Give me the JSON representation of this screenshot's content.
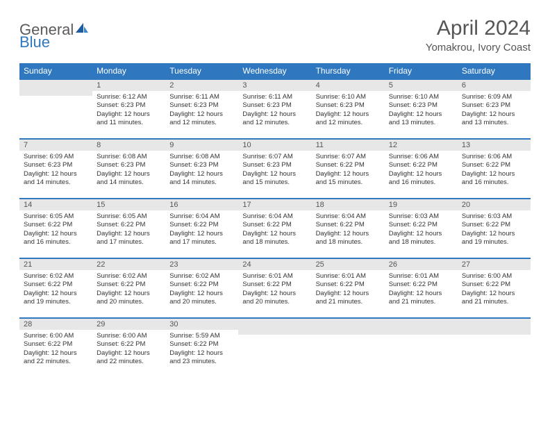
{
  "brand": {
    "part1": "General",
    "part2": "Blue"
  },
  "title": "April 2024",
  "location": "Yomakrou, Ivory Coast",
  "colors": {
    "accent": "#2f78bf",
    "header_bg": "#e7e7e7",
    "text": "#333333",
    "title_text": "#555555",
    "page_bg": "#ffffff"
  },
  "typography": {
    "title_fontsize": 30,
    "location_fontsize": 15,
    "weekday_fontsize": 12,
    "daynum_fontsize": 11,
    "body_fontsize": 9.5
  },
  "weekdays": [
    "Sunday",
    "Monday",
    "Tuesday",
    "Wednesday",
    "Thursday",
    "Friday",
    "Saturday"
  ],
  "weeks": [
    [
      {
        "n": "",
        "sunrise": "",
        "sunset": "",
        "daylight": ""
      },
      {
        "n": "1",
        "sunrise": "Sunrise: 6:12 AM",
        "sunset": "Sunset: 6:23 PM",
        "daylight": "Daylight: 12 hours and 11 minutes."
      },
      {
        "n": "2",
        "sunrise": "Sunrise: 6:11 AM",
        "sunset": "Sunset: 6:23 PM",
        "daylight": "Daylight: 12 hours and 12 minutes."
      },
      {
        "n": "3",
        "sunrise": "Sunrise: 6:11 AM",
        "sunset": "Sunset: 6:23 PM",
        "daylight": "Daylight: 12 hours and 12 minutes."
      },
      {
        "n": "4",
        "sunrise": "Sunrise: 6:10 AM",
        "sunset": "Sunset: 6:23 PM",
        "daylight": "Daylight: 12 hours and 12 minutes."
      },
      {
        "n": "5",
        "sunrise": "Sunrise: 6:10 AM",
        "sunset": "Sunset: 6:23 PM",
        "daylight": "Daylight: 12 hours and 13 minutes."
      },
      {
        "n": "6",
        "sunrise": "Sunrise: 6:09 AM",
        "sunset": "Sunset: 6:23 PM",
        "daylight": "Daylight: 12 hours and 13 minutes."
      }
    ],
    [
      {
        "n": "7",
        "sunrise": "Sunrise: 6:09 AM",
        "sunset": "Sunset: 6:23 PM",
        "daylight": "Daylight: 12 hours and 14 minutes."
      },
      {
        "n": "8",
        "sunrise": "Sunrise: 6:08 AM",
        "sunset": "Sunset: 6:23 PM",
        "daylight": "Daylight: 12 hours and 14 minutes."
      },
      {
        "n": "9",
        "sunrise": "Sunrise: 6:08 AM",
        "sunset": "Sunset: 6:23 PM",
        "daylight": "Daylight: 12 hours and 14 minutes."
      },
      {
        "n": "10",
        "sunrise": "Sunrise: 6:07 AM",
        "sunset": "Sunset: 6:23 PM",
        "daylight": "Daylight: 12 hours and 15 minutes."
      },
      {
        "n": "11",
        "sunrise": "Sunrise: 6:07 AM",
        "sunset": "Sunset: 6:22 PM",
        "daylight": "Daylight: 12 hours and 15 minutes."
      },
      {
        "n": "12",
        "sunrise": "Sunrise: 6:06 AM",
        "sunset": "Sunset: 6:22 PM",
        "daylight": "Daylight: 12 hours and 16 minutes."
      },
      {
        "n": "13",
        "sunrise": "Sunrise: 6:06 AM",
        "sunset": "Sunset: 6:22 PM",
        "daylight": "Daylight: 12 hours and 16 minutes."
      }
    ],
    [
      {
        "n": "14",
        "sunrise": "Sunrise: 6:05 AM",
        "sunset": "Sunset: 6:22 PM",
        "daylight": "Daylight: 12 hours and 16 minutes."
      },
      {
        "n": "15",
        "sunrise": "Sunrise: 6:05 AM",
        "sunset": "Sunset: 6:22 PM",
        "daylight": "Daylight: 12 hours and 17 minutes."
      },
      {
        "n": "16",
        "sunrise": "Sunrise: 6:04 AM",
        "sunset": "Sunset: 6:22 PM",
        "daylight": "Daylight: 12 hours and 17 minutes."
      },
      {
        "n": "17",
        "sunrise": "Sunrise: 6:04 AM",
        "sunset": "Sunset: 6:22 PM",
        "daylight": "Daylight: 12 hours and 18 minutes."
      },
      {
        "n": "18",
        "sunrise": "Sunrise: 6:04 AM",
        "sunset": "Sunset: 6:22 PM",
        "daylight": "Daylight: 12 hours and 18 minutes."
      },
      {
        "n": "19",
        "sunrise": "Sunrise: 6:03 AM",
        "sunset": "Sunset: 6:22 PM",
        "daylight": "Daylight: 12 hours and 18 minutes."
      },
      {
        "n": "20",
        "sunrise": "Sunrise: 6:03 AM",
        "sunset": "Sunset: 6:22 PM",
        "daylight": "Daylight: 12 hours and 19 minutes."
      }
    ],
    [
      {
        "n": "21",
        "sunrise": "Sunrise: 6:02 AM",
        "sunset": "Sunset: 6:22 PM",
        "daylight": "Daylight: 12 hours and 19 minutes."
      },
      {
        "n": "22",
        "sunrise": "Sunrise: 6:02 AM",
        "sunset": "Sunset: 6:22 PM",
        "daylight": "Daylight: 12 hours and 20 minutes."
      },
      {
        "n": "23",
        "sunrise": "Sunrise: 6:02 AM",
        "sunset": "Sunset: 6:22 PM",
        "daylight": "Daylight: 12 hours and 20 minutes."
      },
      {
        "n": "24",
        "sunrise": "Sunrise: 6:01 AM",
        "sunset": "Sunset: 6:22 PM",
        "daylight": "Daylight: 12 hours and 20 minutes."
      },
      {
        "n": "25",
        "sunrise": "Sunrise: 6:01 AM",
        "sunset": "Sunset: 6:22 PM",
        "daylight": "Daylight: 12 hours and 21 minutes."
      },
      {
        "n": "26",
        "sunrise": "Sunrise: 6:01 AM",
        "sunset": "Sunset: 6:22 PM",
        "daylight": "Daylight: 12 hours and 21 minutes."
      },
      {
        "n": "27",
        "sunrise": "Sunrise: 6:00 AM",
        "sunset": "Sunset: 6:22 PM",
        "daylight": "Daylight: 12 hours and 21 minutes."
      }
    ],
    [
      {
        "n": "28",
        "sunrise": "Sunrise: 6:00 AM",
        "sunset": "Sunset: 6:22 PM",
        "daylight": "Daylight: 12 hours and 22 minutes."
      },
      {
        "n": "29",
        "sunrise": "Sunrise: 6:00 AM",
        "sunset": "Sunset: 6:22 PM",
        "daylight": "Daylight: 12 hours and 22 minutes."
      },
      {
        "n": "30",
        "sunrise": "Sunrise: 5:59 AM",
        "sunset": "Sunset: 6:22 PM",
        "daylight": "Daylight: 12 hours and 23 minutes."
      },
      {
        "n": "",
        "sunrise": "",
        "sunset": "",
        "daylight": ""
      },
      {
        "n": "",
        "sunrise": "",
        "sunset": "",
        "daylight": ""
      },
      {
        "n": "",
        "sunrise": "",
        "sunset": "",
        "daylight": ""
      },
      {
        "n": "",
        "sunrise": "",
        "sunset": "",
        "daylight": ""
      }
    ]
  ]
}
